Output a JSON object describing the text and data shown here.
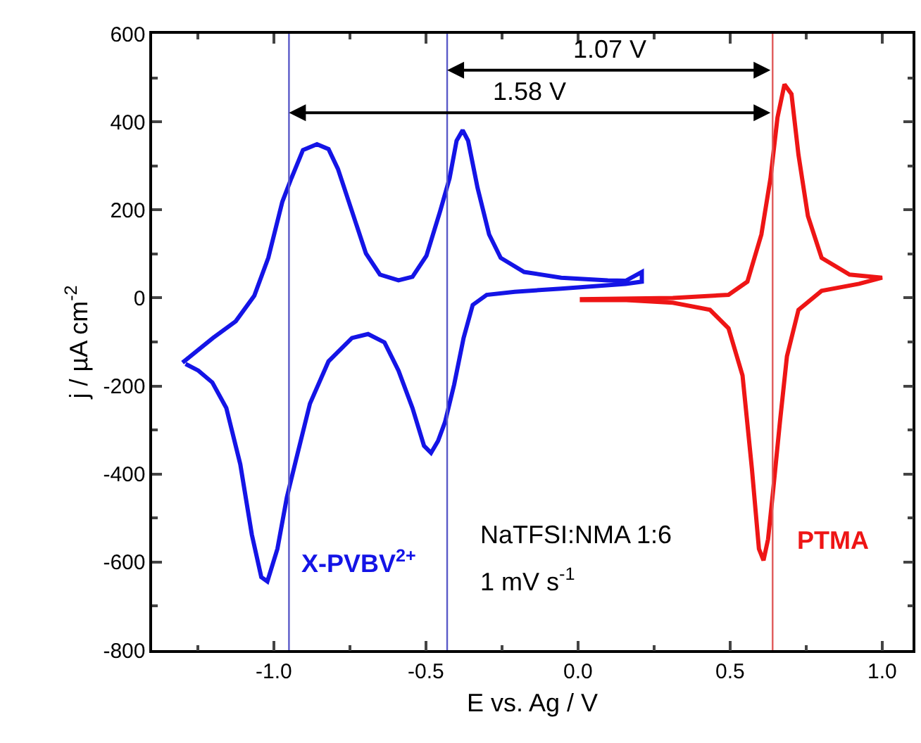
{
  "chart_data": {
    "type": "line",
    "xlabel": "E vs. Ag / V",
    "ylabel": "j / µA cm$^{-2}$",
    "xlim": [
      -1.4,
      1.1
    ],
    "ylim": [
      -800,
      600
    ],
    "xticks": [
      {
        "value": -1,
        "label": "-1.0"
      },
      {
        "value": -0.5,
        "label": "-0.5"
      },
      {
        "value": 0,
        "label": "0.0"
      },
      {
        "value": 0.5,
        "label": "0.5"
      },
      {
        "value": 1,
        "label": "1.0"
      }
    ],
    "yticks": [
      -800,
      -600,
      -400,
      -200,
      0,
      200,
      400,
      600
    ],
    "legend": false,
    "marker": "none",
    "line_style": "solid",
    "series": [
      {
        "name": "X-PVBV$^{2+}$",
        "color": "#1414e6",
        "x": [
          -1.3,
          -1.2,
          -1.125,
          -1.064,
          -1.018,
          -0.972,
          -0.942,
          -0.904,
          -0.858,
          -0.82,
          -0.789,
          -0.743,
          -0.697,
          -0.651,
          -0.59,
          -0.544,
          -0.498,
          -0.453,
          -0.422,
          -0.399,
          -0.379,
          -0.361,
          -0.33,
          -0.292,
          -0.254,
          -0.177,
          -0.055,
          0.098,
          0.157,
          0.21,
          0.21,
          0.157,
          -0.055,
          -0.208,
          -0.3,
          -0.346,
          -0.376,
          -0.407,
          -0.437,
          -0.46,
          -0.483,
          -0.506,
          -0.544,
          -0.59,
          -0.636,
          -0.69,
          -0.743,
          -0.82,
          -0.881,
          -0.927,
          -0.957,
          -0.988,
          -1.021,
          -1.041,
          -1.072,
          -1.11,
          -1.156,
          -1.202,
          -1.248,
          -1.29
        ],
        "values": [
          -147,
          -91,
          -53,
          5,
          91,
          218,
          272,
          336,
          349,
          338,
          293,
          197,
          101,
          53,
          40,
          48,
          96,
          197,
          272,
          357,
          381,
          357,
          250,
          144,
          91,
          59,
          46,
          40,
          39,
          59,
          37,
          32,
          21,
          14,
          7,
          -16,
          -91,
          -197,
          -282,
          -325,
          -352,
          -336,
          -250,
          -165,
          -101,
          -82,
          -91,
          -144,
          -240,
          -368,
          -453,
          -570,
          -644,
          -634,
          -538,
          -378,
          -250,
          -192,
          -165,
          -150
        ]
      },
      {
        "name": "PTMA",
        "color": "#ee1515",
        "x": [
          0.006,
          0.312,
          0.495,
          0.557,
          0.603,
          0.633,
          0.656,
          0.679,
          0.702,
          0.725,
          0.756,
          0.801,
          0.893,
          1.0,
          0.924,
          0.801,
          0.725,
          0.687,
          0.664,
          0.641,
          0.625,
          0.61,
          0.595,
          0.572,
          0.541,
          0.495,
          0.434,
          0.312,
          0.159,
          0.006
        ],
        "values": [
          -3,
          0,
          7,
          37,
          144,
          272,
          410,
          485,
          463,
          325,
          186,
          91,
          53,
          46,
          32,
          16,
          -27,
          -133,
          -282,
          -442,
          -548,
          -596,
          -570,
          -389,
          -176,
          -69,
          -27,
          -11,
          -5,
          -5
        ]
      }
    ],
    "ref_lines": [
      {
        "axis": "x",
        "value": -0.95,
        "color": "#5a5ac8"
      },
      {
        "axis": "x",
        "value": -0.43,
        "color": "#5a5ac8"
      },
      {
        "axis": "x",
        "value": 0.64,
        "color": "#e05a5a"
      }
    ],
    "annotations": [
      "1.07 V",
      "1.58 V",
      "NaTFSI:NMA 1:6",
      "1 mV s$^{-1}$"
    ]
  }
}
